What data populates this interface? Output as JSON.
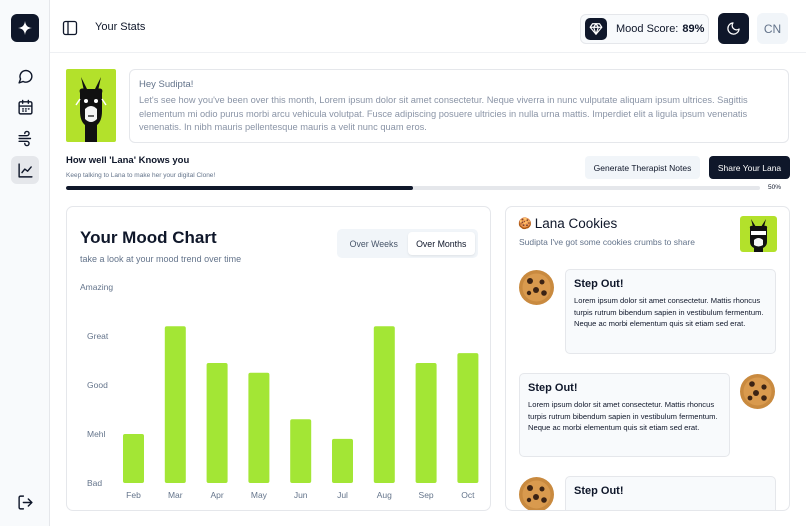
{
  "header": {
    "title": "Your Stats",
    "mood_label": "Mood Score:",
    "mood_value": "89%",
    "avatar_initials": "CN"
  },
  "intro": {
    "greeting": "Hey Sudipta!",
    "body": "Let's see how you've been over this month, Lorem ipsum dolor sit amet consectetur. Neque viverra in nunc vulputate aliquam ipsum ultrices. Sagittis elementum mi odio purus morbi arcu vehicula volutpat. Fusce adipiscing posuere ultricies in nulla urna mattis. Imperdiet elit a ligula ipsum venenatis venenatis. In nibh mauris pellentesque mauris a velit nunc quam eros."
  },
  "knows": {
    "title": "How well 'Lana' Knows you",
    "subtitle": "Keep talking to Lana to make her your digital Clone!",
    "progress": 50,
    "progress_label": "50%",
    "notes_button": "Generate Therapist Notes",
    "share_button": "Share Your Lana"
  },
  "mood_chart": {
    "title": "Your Mood Chart",
    "subtitle": "take a look at your mood trend over time",
    "toggle_weeks": "Over Weeks",
    "toggle_months": "Over Months"
  },
  "chart_data": {
    "type": "bar",
    "title": "Your Mood Chart",
    "categories": [
      "Feb",
      "Mar",
      "Apr",
      "May",
      "Jun",
      "Jul",
      "Aug",
      "Sep",
      "Oct"
    ],
    "values": [
      1.0,
      3.2,
      2.45,
      2.25,
      1.3,
      0.9,
      3.2,
      2.45,
      2.65
    ],
    "y_ticks": [
      "Bad",
      "Mehl",
      "Good",
      "Great",
      "Amazing"
    ],
    "ylim": [
      0,
      4
    ],
    "color": "#a3e635"
  },
  "cookies": {
    "title": "Lana Cookies",
    "emoji": "🍪",
    "subtitle": "Sudipta I've got some cookies crumbs to share",
    "messages": [
      {
        "title": "Step Out!",
        "body": "Lorem ipsum dolor sit amet consectetur. Mattis rhoncus turpis rutrum bibendum sapien in vestibulum fermentum. Neque ac morbi elementum quis sit etiam sed erat."
      },
      {
        "title": "Step Out!",
        "body": "Lorem ipsum dolor sit amet consectetur. Mattis rhoncus turpis rutrum bibendum sapien in vestibulum fermentum. Neque ac morbi elementum quis sit etiam sed erat."
      },
      {
        "title": "Step Out!",
        "body": ""
      }
    ]
  },
  "colors": {
    "primary": "#0f172a",
    "accent": "#a3e635",
    "llama_bg": "#b3e12b"
  }
}
